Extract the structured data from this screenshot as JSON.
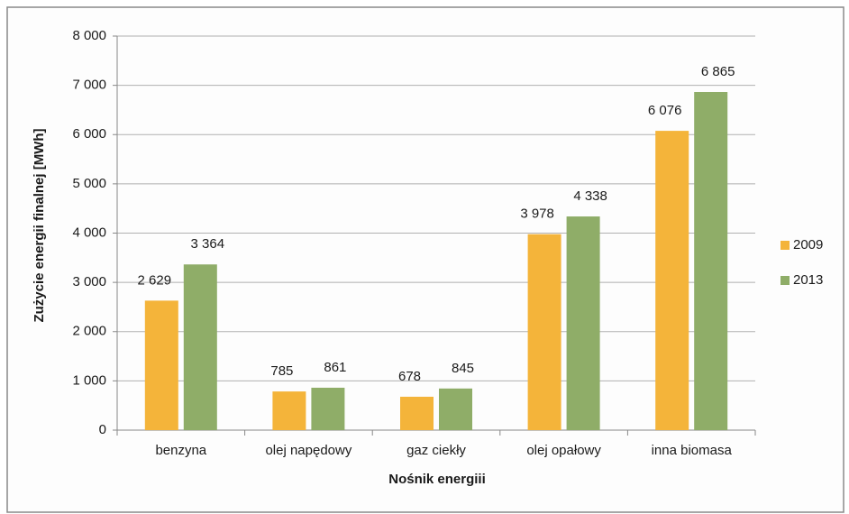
{
  "chart_data": {
    "type": "bar",
    "x_label": "Nośnik energiii",
    "y_label": "Zużycie energii finalnej [MWh]",
    "categories": [
      "benzyna",
      "olej napędowy",
      "gaz ciekły",
      "olej opałowy",
      "inna biomasa"
    ],
    "series": [
      {
        "name": "2009",
        "color": "#f4b43a",
        "values": [
          2629,
          785,
          678,
          3978,
          6076
        ],
        "value_labels": [
          "2 629",
          "785",
          "678",
          "3 978",
          "6 076"
        ]
      },
      {
        "name": "2013",
        "color": "#8fad68",
        "values": [
          3364,
          861,
          845,
          4338,
          6865
        ],
        "value_labels": [
          "3 364",
          "861",
          "845",
          "4 338",
          "6 865"
        ]
      }
    ],
    "ylim": [
      0,
      8000
    ],
    "yticks": [
      {
        "value": 0,
        "label": "0"
      },
      {
        "value": 1000,
        "label": "1 000"
      },
      {
        "value": 2000,
        "label": "2 000"
      },
      {
        "value": 3000,
        "label": "3 000"
      },
      {
        "value": 4000,
        "label": "4 000"
      },
      {
        "value": 5000,
        "label": "5 000"
      },
      {
        "value": 6000,
        "label": "6 000"
      },
      {
        "value": 7000,
        "label": "7 000"
      },
      {
        "value": 8000,
        "label": "8 000"
      }
    ],
    "grid": true,
    "legend": "right"
  }
}
